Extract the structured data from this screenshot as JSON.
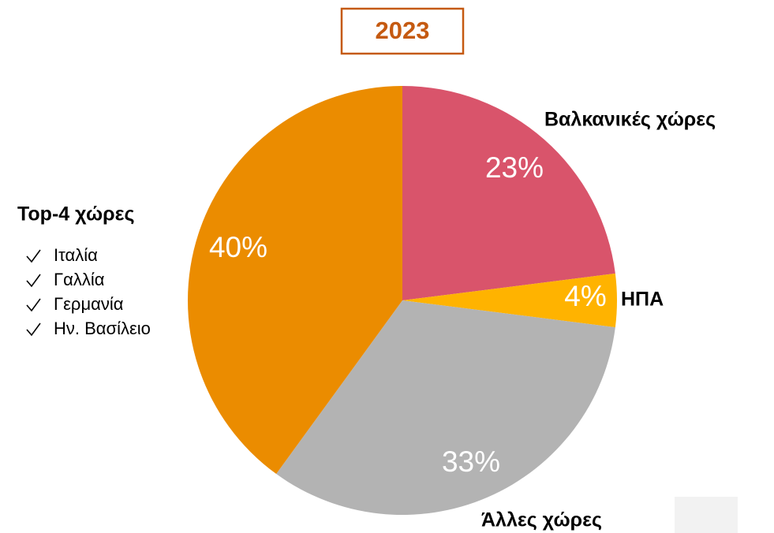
{
  "chart_data": {
    "type": "pie",
    "title": "2023",
    "categories": [
      "Βαλκανικές χώρες",
      "ΗΠΑ",
      "Άλλες χώρες",
      "Top-4 χώρες"
    ],
    "values": [
      23,
      4,
      33,
      40
    ],
    "value_labels": [
      "23%",
      "4%",
      "33%",
      "40%"
    ],
    "colors": [
      "#d9546b",
      "#ffb300",
      "#b3b3b3",
      "#eb8c00"
    ],
    "sublist": [
      "Ιταλία",
      "Γαλλία",
      "Γερμανία",
      "Ην. Βασίλειο"
    ]
  }
}
